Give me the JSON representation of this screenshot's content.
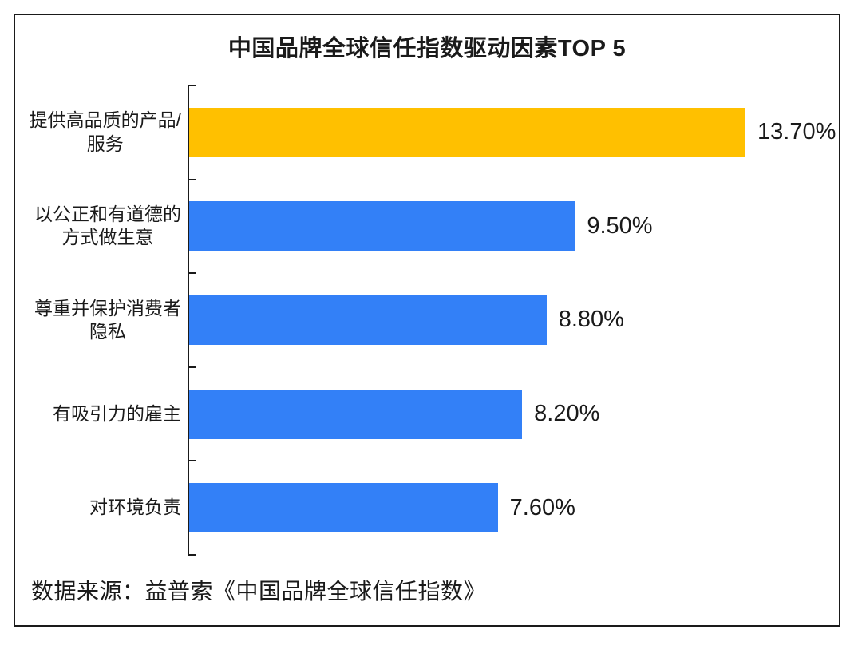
{
  "title": "中国品牌全球信任指数驱动因素TOP 5",
  "source_note": "数据来源：益普索《中国品牌全球信任指数》",
  "colors": {
    "highlight_bar": "#FFC000",
    "default_bar": "#3380F7",
    "axis": "#1A1A1A",
    "text": "#1A1A1A",
    "frame_border": "#1A1A1A",
    "background": "#FFFFFF"
  },
  "chart_data": {
    "type": "bar",
    "orientation": "horizontal",
    "title": "中国品牌全球信任指数驱动因素TOP 5",
    "categories": [
      "提供高品质的产品/服务",
      "以公正和有道德的方式做生意",
      "尊重并保护消费者隐私",
      "有吸引力的雇主",
      "对环境负责"
    ],
    "category_display_lines": [
      [
        "提供高品质的产品/",
        "服务"
      ],
      [
        "以公正和有道德的",
        "方式做生意"
      ],
      [
        "尊重并保护消费者",
        "隐私"
      ],
      [
        "有吸引力的雇主"
      ],
      [
        "对环境负责"
      ]
    ],
    "values": [
      13.7,
      9.5,
      8.8,
      8.2,
      7.6
    ],
    "value_labels": [
      "13.70%",
      "9.50%",
      "8.80%",
      "8.20%",
      "7.60%"
    ],
    "bar_colors": [
      "#FFC000",
      "#3380F7",
      "#3380F7",
      "#3380F7",
      "#3380F7"
    ],
    "xlabel": "",
    "ylabel": "",
    "xlim": [
      0,
      14.2
    ],
    "grid": false,
    "legend": null,
    "source": "数据来源：益普索《中国品牌全球信任指数》"
  }
}
